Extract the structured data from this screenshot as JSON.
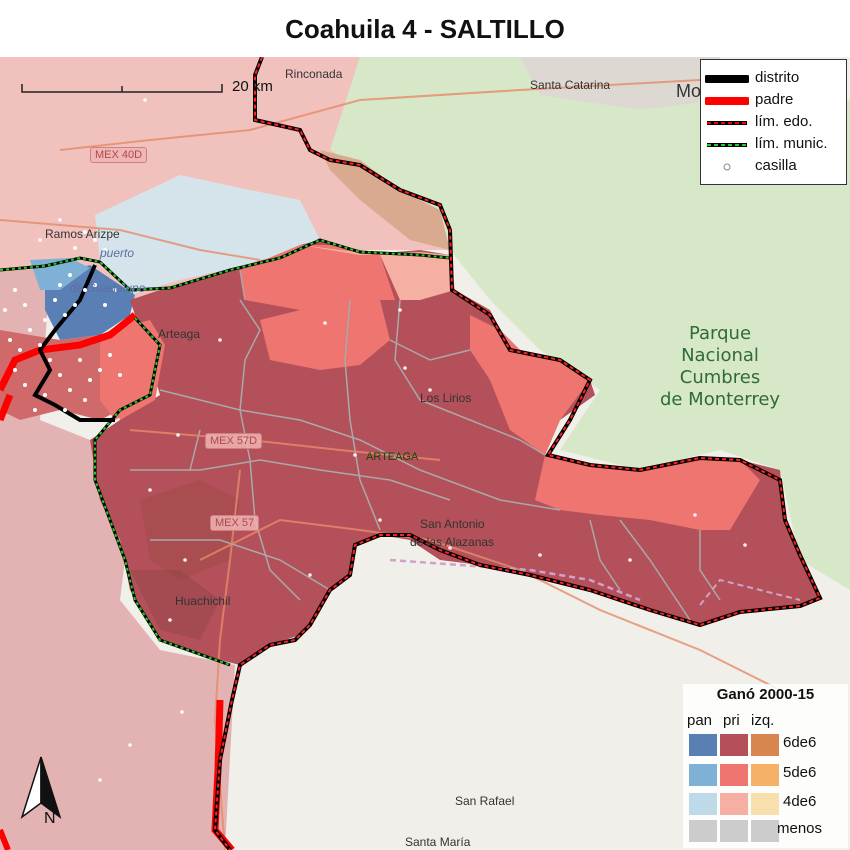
{
  "title": "Coahuila 4 - SALTILLO",
  "scale": {
    "label": "20 km"
  },
  "places": {
    "rinconada": "Rinconada",
    "santa_catarina": "Santa Catarina",
    "monterrey_partial": "Mo",
    "mex40d": "MEX 40D",
    "ramos_arizpe": "Ramos Arizpe",
    "puerto": "puerto",
    "de_guadalupe": "de Guadalupe",
    "arteaga_town": "Arteaga",
    "los_lirios": "Los Lirios",
    "mex57d": "MEX 57D",
    "mex57": "MEX 57",
    "san_antonio_1": "San Antonio",
    "san_antonio_2": "de las Alazanas",
    "huachichil": "Huachichil",
    "san_rafael": "San Rafael",
    "santa_maria": "Santa María"
  },
  "park": {
    "line1": "Parque",
    "line2": "Nacional",
    "line3": "Cumbres",
    "line4": "de Monterrey"
  },
  "municipality": "ARTEAGA",
  "legend": {
    "items": [
      {
        "label": "distrito",
        "color": "#000000"
      },
      {
        "label": "padre",
        "color": "#ff0000"
      },
      {
        "label": "lím. edo.",
        "color": "#ff0000"
      },
      {
        "label": "lím. munic.",
        "color": "#22cc22"
      },
      {
        "label": "casilla",
        "color": "#ffffff"
      }
    ]
  },
  "vote_legend": {
    "title": "Ganó 2000-15",
    "columns": [
      "pan",
      "pri",
      "izq."
    ],
    "rows": [
      {
        "label": "6de6",
        "colors": [
          "#5a7fb5",
          "#b4505a",
          "#d9854f"
        ]
      },
      {
        "label": "5de6",
        "colors": [
          "#7fb0d5",
          "#ee7570",
          "#f6b168"
        ]
      },
      {
        "label": "4de6",
        "colors": [
          "#bed9e8",
          "#f6b0a3",
          "#f7dfae"
        ]
      },
      {
        "label": "menos",
        "colors": [
          "#cccccc",
          "#cccccc",
          "#cccccc"
        ]
      }
    ]
  },
  "north": "N"
}
